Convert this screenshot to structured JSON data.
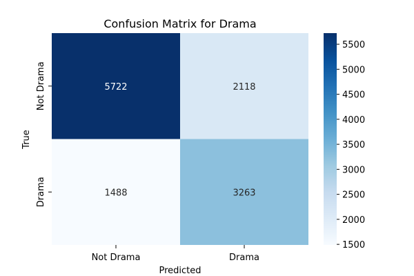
{
  "chart_data": {
    "type": "heatmap",
    "title": "Confusion Matrix for Drama",
    "xlabel": "Predicted",
    "ylabel": "True",
    "x_categories": [
      "Not Drama",
      "Drama"
    ],
    "y_categories": [
      "Not Drama",
      "Drama"
    ],
    "values": [
      [
        5722,
        2118
      ],
      [
        1488,
        3263
      ]
    ],
    "colorbar": {
      "colormap": "Blues",
      "range": [
        1488,
        5722
      ],
      "ticks": [
        1500,
        2000,
        2500,
        3000,
        3500,
        4000,
        4500,
        5000,
        5500
      ]
    },
    "grid": false,
    "colorbar_placement": "right"
  }
}
